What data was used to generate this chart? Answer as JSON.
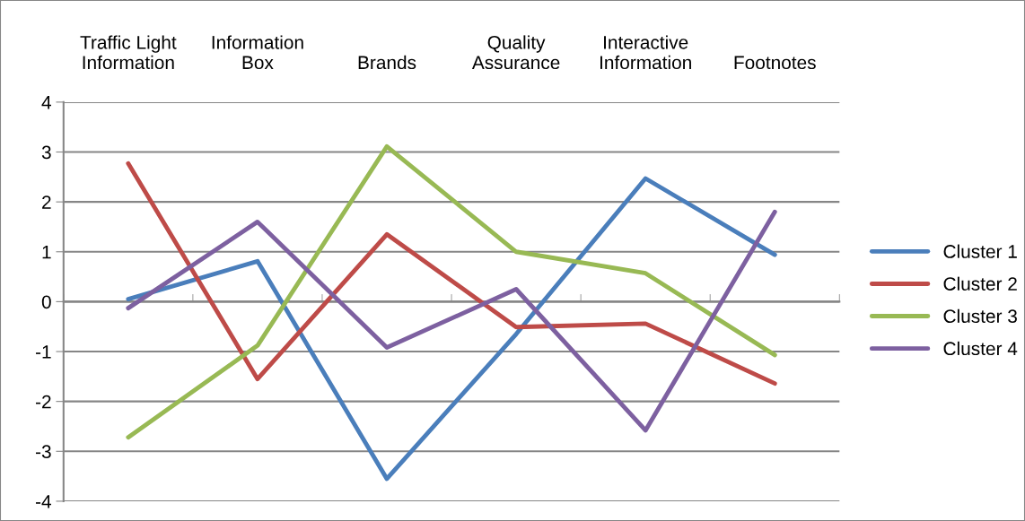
{
  "chart_data": {
    "type": "line",
    "categories": [
      "Traffic Light\nInformation",
      "Information\nBox",
      "Brands",
      "Quality\nAssurance",
      "Interactive\nInformation",
      "Footnotes"
    ],
    "series": [
      {
        "name": "Cluster 1",
        "color": "#4a7ebb",
        "values": [
          0.05,
          0.81,
          -3.55,
          -0.65,
          2.47,
          0.94
        ]
      },
      {
        "name": "Cluster 2",
        "color": "#be4b48",
        "values": [
          2.77,
          -1.55,
          1.35,
          -0.51,
          -0.44,
          -1.64
        ]
      },
      {
        "name": "Cluster 3",
        "color": "#98b954",
        "values": [
          -2.72,
          -0.88,
          3.11,
          1.0,
          0.57,
          -1.07
        ]
      },
      {
        "name": "Cluster 4",
        "color": "#7d60a0",
        "values": [
          -0.13,
          1.6,
          -0.92,
          0.25,
          -2.58,
          1.8
        ]
      }
    ],
    "ylim": [
      -4,
      4
    ],
    "yticks": [
      -4,
      -3,
      -2,
      -1,
      0,
      1,
      2,
      3,
      4
    ],
    "grid": "y",
    "legend": "right",
    "marker": "none",
    "line_style": "solid"
  }
}
